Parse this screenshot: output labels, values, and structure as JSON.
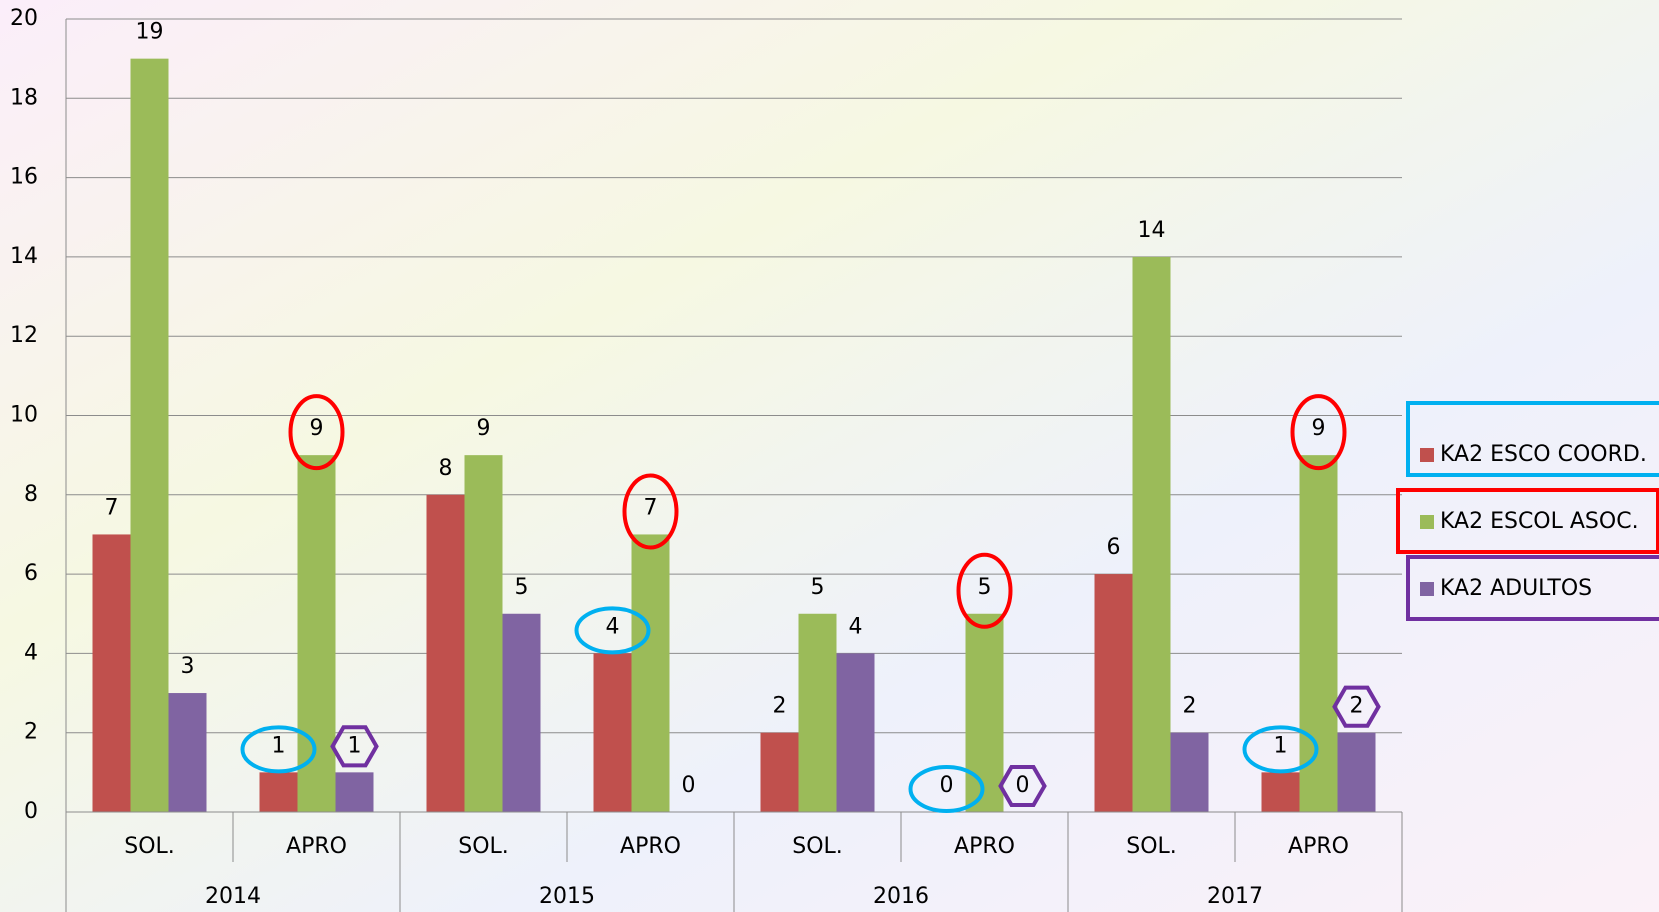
{
  "chart_data": {
    "type": "bar",
    "categories": [
      "SOL.",
      "APRO",
      "SOL.",
      "APRO",
      "SOL.",
      "APRO",
      "SOL.",
      "APRO"
    ],
    "groups": [
      "2014",
      "2015",
      "2016",
      "2017"
    ],
    "series": [
      {
        "name": "KA2 ESCO COORD.",
        "color": "#c0504d",
        "values": [
          7,
          1,
          8,
          4,
          2,
          0,
          6,
          1
        ]
      },
      {
        "name": "KA2 ESCOL ASOC.",
        "color": "#9bbb59",
        "values": [
          19,
          9,
          9,
          7,
          5,
          5,
          14,
          9
        ]
      },
      {
        "name": "KA2 ADULTOS",
        "color": "#8064a2",
        "values": [
          3,
          1,
          5,
          0,
          4,
          0,
          2,
          2
        ]
      }
    ],
    "ylim": [
      0,
      20
    ],
    "yticks": [
      0,
      2,
      4,
      6,
      8,
      10,
      12,
      14,
      16,
      18,
      20
    ],
    "grid": true,
    "legend": "right"
  }
}
